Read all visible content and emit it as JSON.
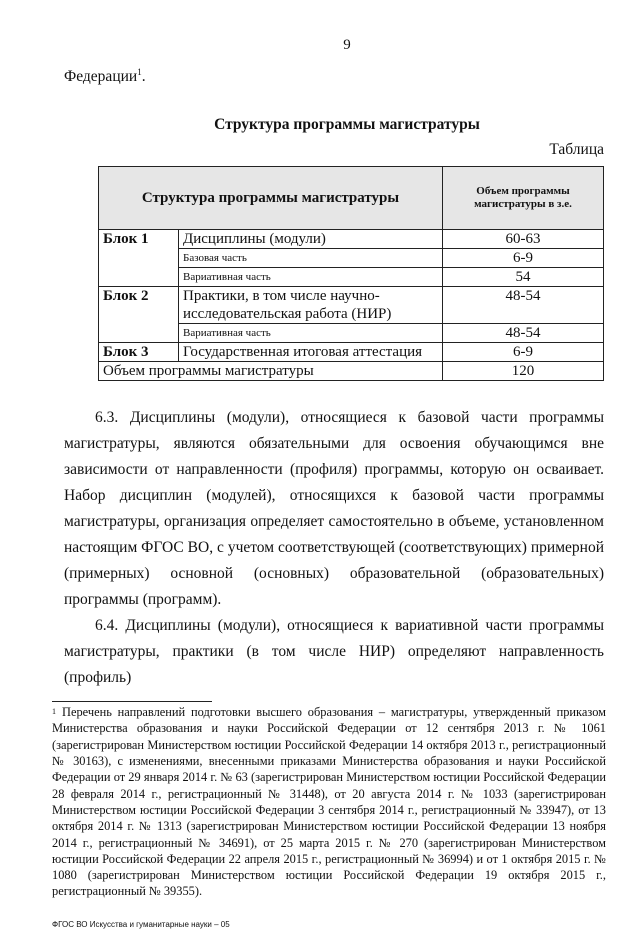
{
  "page_number": "9",
  "top_text": "Федерации",
  "top_text_ref": "1",
  "section_title": "Структура программы магистратуры",
  "table_label": "Таблица",
  "table": {
    "header": {
      "structure": "Структура программы магистратуры",
      "volume": "Объем программы магистратуры в з.е."
    },
    "rows": [
      {
        "block": "Блок 1",
        "name": "Дисциплины (модули)",
        "value": "60-63"
      },
      {
        "block": "",
        "name": "Базовая часть",
        "value": "6-9"
      },
      {
        "block": "",
        "name": "Вариативная часть",
        "value": "54"
      },
      {
        "block": "Блок 2",
        "name": "Практики, в том числе научно-исследовательская работа (НИР)",
        "value": "48-54"
      },
      {
        "block": "",
        "name": "Вариативная часть",
        "value": "48-54"
      },
      {
        "block": "Блок 3",
        "name": "Государственная итоговая аттестация",
        "value": "6-9"
      }
    ],
    "total": {
      "name": "Объем программы магистратуры",
      "value": "120"
    }
  },
  "paragraphs": [
    "6.3. Дисциплины (модули), относящиеся к базовой части программы магистратуры, являются обязательными для освоения обучающимся вне зависимости от направленности (профиля) программы, которую он осваивает. Набор дисциплин (модулей), относящихся к базовой части программы магистратуры, организация определяет самостоятельно в объеме, установленном настоящим ФГОС ВО, с учетом соответствующей (соответствующих) примерной (примерных) основной (основных) образовательной (образовательных) программы (программ).",
    "6.4. Дисциплины (модули), относящиеся к вариативной части программы магистратуры, практики (в том числе НИР) определяют направленность (профиль)"
  ],
  "footnote": {
    "mark": "1",
    "text": "Перечень направлений подготовки высшего образования – магистратуры, утвержденный приказом Министерства образования и науки Российской Федерации от 12 сентября 2013 г. № 1061 (зарегистрирован Министерством юстиции Российской Федерации 14 октября 2013 г., регистрационный № 30163), с изменениями, внесенными приказами Министерства образования и науки Российской Федерации от 29 января 2014 г. № 63 (зарегистрирован Министерством юстиции Российской Федерации 28 февраля 2014 г., регистрационный № 31448), от 20 августа 2014 г. № 1033 (зарегистрирован Министерством юстиции Российской Федерации 3 сентября 2014 г., регистрационный № 33947), от 13 октября 2014 г. № 1313 (зарегистрирован Министерством юстиции Российской Федерации 13 ноября 2014 г., регистрационный № 34691), от 25 марта 2015 г. № 270 (зарегистрирован Министерством юстиции Российской Федерации 22 апреля 2015 г., регистрационный № 36994) и от 1 октября 2015 г. № 1080 (зарегистрирован Министерством юстиции Российской Федерации 19 октября 2015 г., регистрационный № 39355)."
  },
  "footer": "ФГОС ВО Искусства и гуманитарные науки – 05"
}
